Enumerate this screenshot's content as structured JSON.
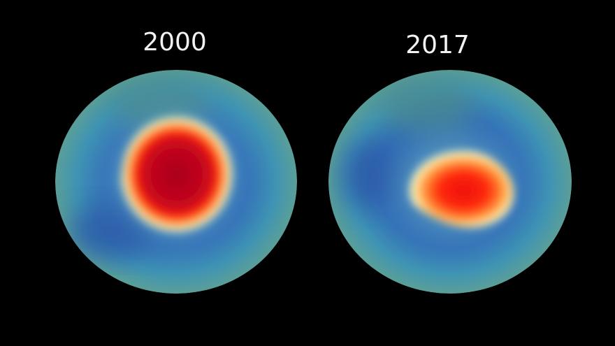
{
  "panels": [
    {
      "label": "2000"
    },
    {
      "label": "2017"
    }
  ]
}
